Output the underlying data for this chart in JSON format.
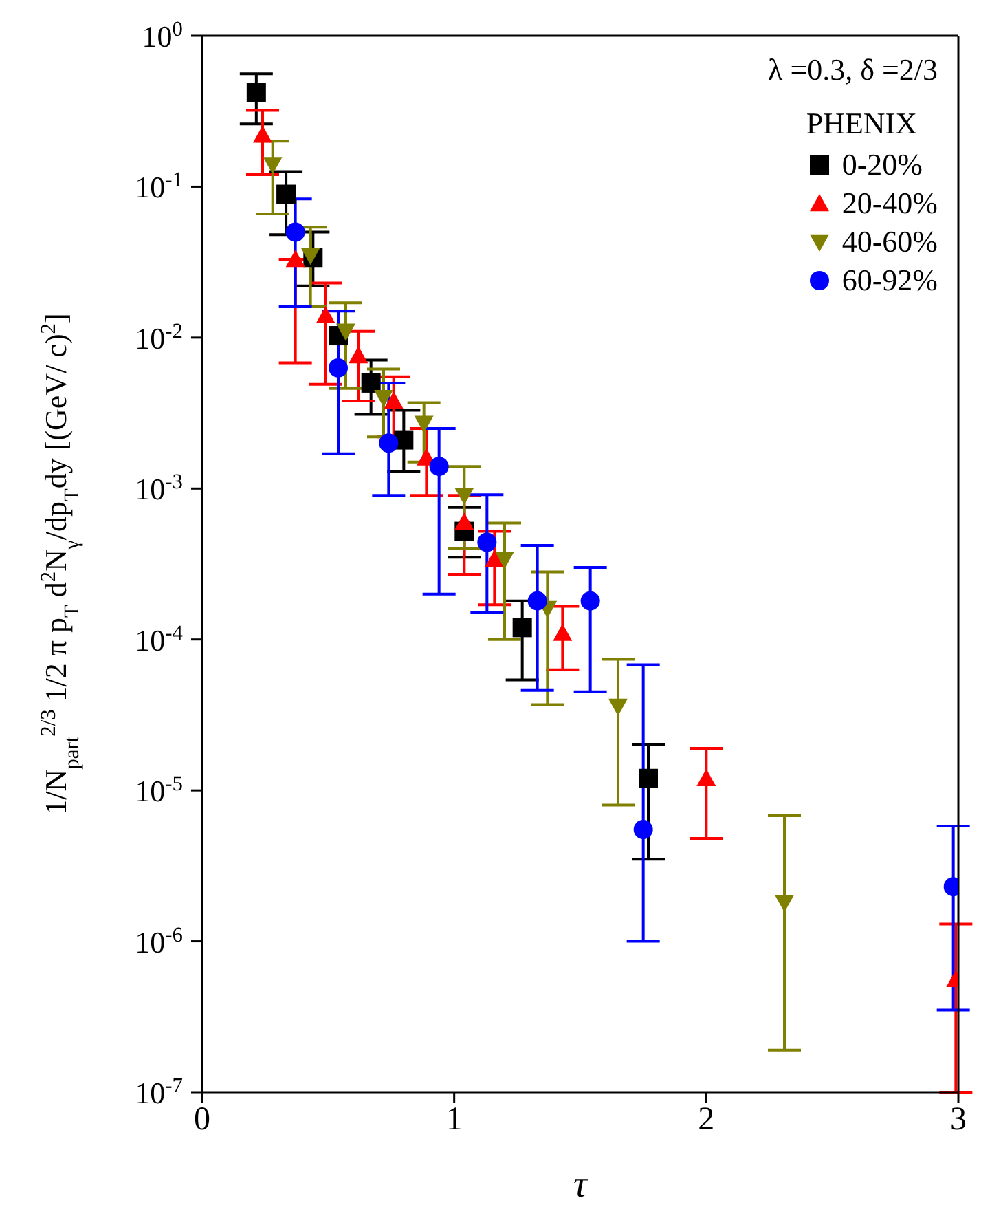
{
  "chart_data": {
    "type": "scatter",
    "xlabel": "τ",
    "ylabel": "1/N$_{part}$$^{2/3}$  1/2 π p$_{T}$ d$^{2}$N$_{γ}$/dp$_{T}$dy [(GeV/ c)$^{2}$]",
    "annotations": [
      "λ =0.3,  δ =2/3"
    ],
    "legend_title": "PHENIX",
    "legend": "top right",
    "log": "y",
    "grid": false,
    "xlim": [
      0,
      3
    ],
    "xticks": [
      0,
      1,
      2,
      3
    ],
    "ylim": [
      1e-07,
      1
    ],
    "yticks": [
      {
        "value": 1e-07,
        "label": "10$^{-7}$"
      },
      {
        "value": 1e-06,
        "label": "10$^{-6}$"
      },
      {
        "value": 1e-05,
        "label": "10$^{-5}$"
      },
      {
        "value": 0.0001,
        "label": "10$^{-4}$"
      },
      {
        "value": 0.001,
        "label": "10$^{-3}$"
      },
      {
        "value": 0.01,
        "label": "10$^{-2}$"
      },
      {
        "value": 0.1,
        "label": "10$^{-1}$"
      },
      {
        "value": 1,
        "label": "10$^{0}$"
      }
    ],
    "series": [
      {
        "name": "0-20%",
        "color": "#000000",
        "marker": "square",
        "x": [
          0.215,
          0.333,
          0.44,
          0.54,
          0.67,
          0.8,
          1.04,
          1.27,
          1.77
        ],
        "values": [
          0.42,
          0.089,
          0.034,
          0.0103,
          0.005,
          0.0021,
          0.00052,
          0.00012,
          1.2e-05
        ],
        "errors": [
          [
            0.26,
            0.56
          ],
          [
            0.048,
            0.126
          ],
          [
            0.022,
            0.05
          ],
          null,
          [
            0.0031,
            0.0071
          ],
          [
            0.0013,
            0.0033
          ],
          [
            0.00035,
            0.00075
          ],
          [
            5.4e-05,
            0.00018
          ],
          [
            3.5e-06,
            2e-05
          ]
        ]
      },
      {
        "name": "20-40%",
        "color": "#ff0000",
        "marker": "triangle",
        "x": [
          0.24,
          0.37,
          0.49,
          0.62,
          0.76,
          0.89,
          1.04,
          1.16,
          1.43,
          2.0,
          2.99
        ],
        "values": [
          0.22,
          0.033,
          0.014,
          0.0076,
          0.0038,
          0.0016,
          0.0006,
          0.00034,
          0.00011,
          1.2e-05,
          5.6e-07
        ],
        "errors": [
          [
            0.12,
            0.32
          ],
          [
            0.0068,
            0.033
          ],
          [
            0.0049,
            0.023
          ],
          [
            0.0038,
            0.011
          ],
          [
            0.0022,
            0.0055
          ],
          [
            0.0009,
            0.0025
          ],
          [
            0.00027,
            0.0009
          ],
          [
            0.00017,
            0.00052
          ],
          [
            6.3e-05,
            0.000166
          ],
          [
            4.8e-06,
            1.9e-05
          ],
          [
            1e-07,
            1.3e-06
          ]
        ]
      },
      {
        "name": "40-60%",
        "color": "#808000",
        "marker": "triangle-down",
        "x": [
          0.28,
          0.43,
          0.57,
          0.72,
          0.88,
          1.04,
          1.2,
          1.37,
          1.65,
          2.31
        ],
        "values": [
          0.14,
          0.035,
          0.011,
          0.004,
          0.0027,
          0.0009,
          0.00034,
          0.00016,
          3.6e-05,
          1.8e-06
        ],
        "errors": [
          [
            0.066,
            0.2
          ],
          [
            0.016,
            0.054
          ],
          [
            0.0046,
            0.017
          ],
          [
            0.0022,
            0.0062
          ],
          [
            0.0015,
            0.0037
          ],
          [
            0.0004,
            0.0014
          ],
          [
            0.0001,
            0.00059
          ],
          [
            3.7e-05,
            0.00028
          ],
          [
            8e-06,
            7.4e-05
          ],
          [
            1.9e-07,
            6.8e-06
          ]
        ]
      },
      {
        "name": "60-92%",
        "color": "#0000ff",
        "marker": "circle",
        "x": [
          0.37,
          0.54,
          0.74,
          0.94,
          1.13,
          1.33,
          1.54,
          1.75,
          2.98
        ],
        "values": [
          0.05,
          0.0063,
          0.002,
          0.0014,
          0.00044,
          0.00018,
          0.00018,
          5.5e-06,
          2.3e-06
        ],
        "errors": [
          [
            0.016,
            0.083
          ],
          [
            0.0017,
            0.015
          ],
          [
            0.0009,
            0.005
          ],
          [
            0.0002,
            0.0025
          ],
          [
            0.00015,
            0.00091
          ],
          [
            4.6e-05,
            0.00042
          ],
          [
            4.5e-05,
            0.0003
          ],
          [
            1e-06,
            6.8e-05
          ],
          [
            3.5e-07,
            5.8e-06
          ]
        ]
      }
    ]
  }
}
